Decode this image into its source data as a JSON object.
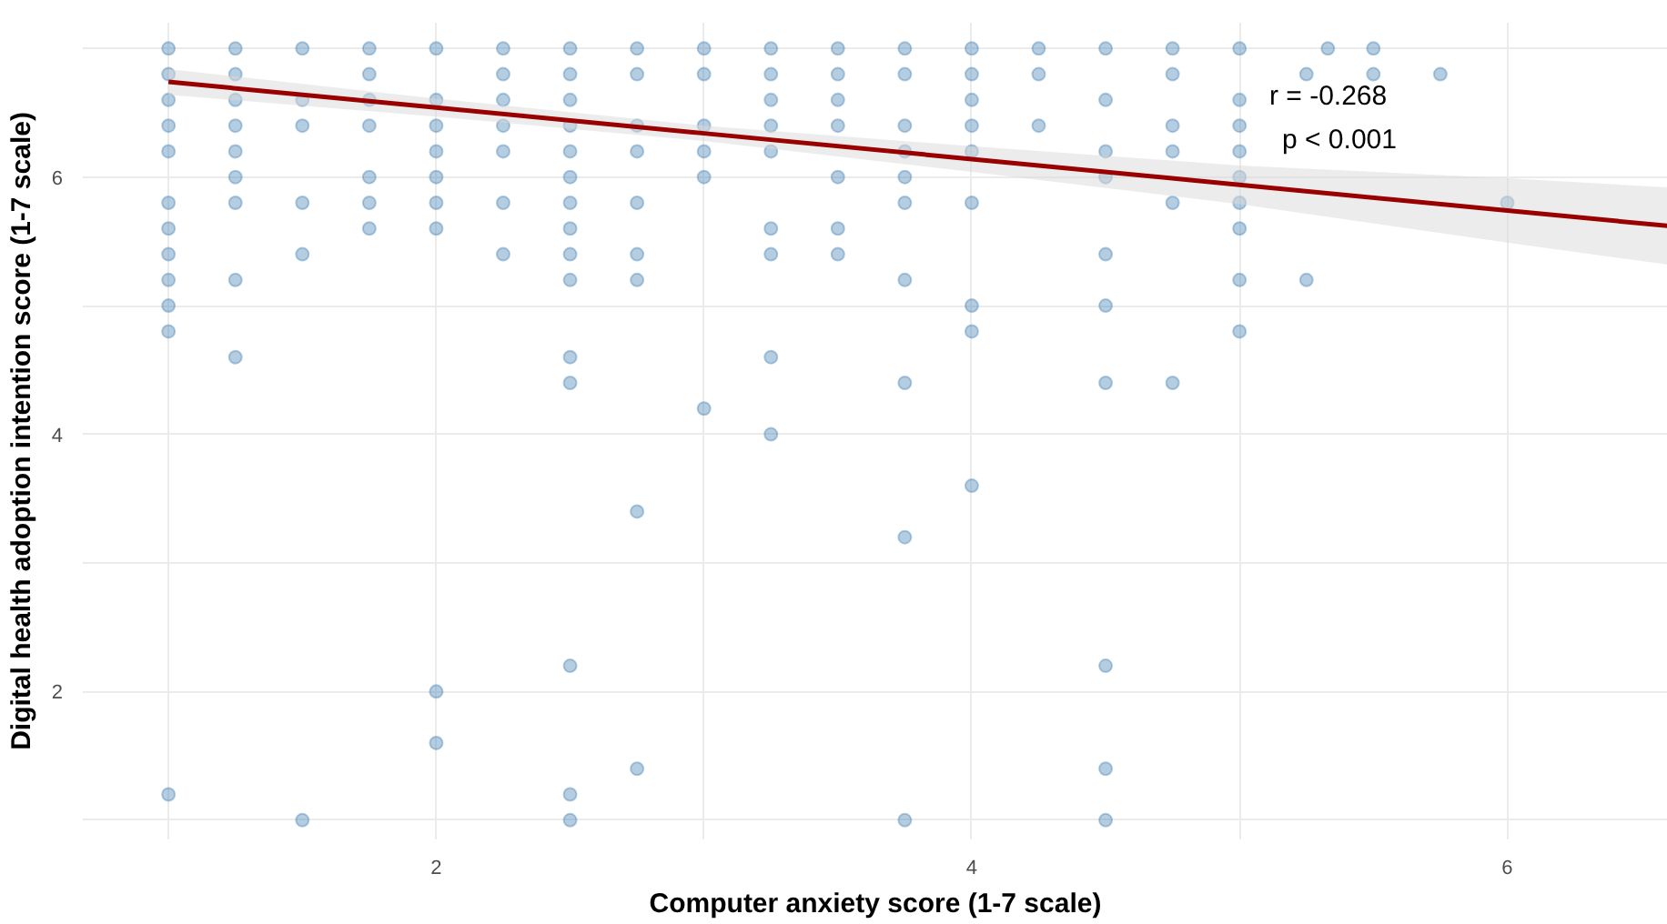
{
  "chart_data": {
    "type": "scatter",
    "xlabel": "Computer anxiety score (1-7 scale)",
    "ylabel": "Digital health adoption intention score (1-7 scale)",
    "annotations": [
      "r = -0.268",
      "p < 0.001"
    ],
    "xlim": [
      0.68,
      6.6
    ],
    "ylim": [
      0.85,
      7.2
    ],
    "xticks": [
      {
        "value": 1,
        "label": null
      },
      2,
      {
        "value": 3,
        "label": null
      },
      4,
      {
        "value": 5,
        "label": null
      },
      6
    ],
    "yticks": [
      {
        "value": 1,
        "label": null
      },
      2,
      {
        "value": 3,
        "label": null
      },
      4,
      {
        "value": 5,
        "label": null
      },
      6,
      {
        "value": 7,
        "label": null
      }
    ],
    "grid": true,
    "series": [
      {
        "marker": "circle",
        "color": "#4682b4",
        "x": [
          1,
          1,
          1,
          1,
          1,
          1,
          1,
          1,
          1,
          1,
          1,
          1,
          1.25,
          1.25,
          1.25,
          1.25,
          1.25,
          1.25,
          1.25,
          1.25,
          1.25,
          1.5,
          1.5,
          1.5,
          1.5,
          1.5,
          1.5,
          1.75,
          1.75,
          1.75,
          1.75,
          1.75,
          1.75,
          1.75,
          2,
          2,
          2,
          2,
          2,
          2,
          2,
          2,
          2,
          2.25,
          2.25,
          2.25,
          2.25,
          2.25,
          2.25,
          2.25,
          2.5,
          2.5,
          2.5,
          2.5,
          2.5,
          2.5,
          2.5,
          2.5,
          2.5,
          2.5,
          2.5,
          2.5,
          2.5,
          2.5,
          2.5,
          2.75,
          2.75,
          2.75,
          2.75,
          2.75,
          2.75,
          2.75,
          2.75,
          2.75,
          3,
          3,
          3,
          3,
          3,
          3,
          3.25,
          3.25,
          3.25,
          3.25,
          3.25,
          3.25,
          3.25,
          3.25,
          3.25,
          3.5,
          3.5,
          3.5,
          3.5,
          3.5,
          3.5,
          3.5,
          3.75,
          3.75,
          3.75,
          3.75,
          3.75,
          3.75,
          3.75,
          3.75,
          3.75,
          3.75,
          4,
          4,
          4,
          4,
          4,
          4,
          4,
          4,
          4,
          4.25,
          4.25,
          4.25,
          4.5,
          4.5,
          4.5,
          4.5,
          4.5,
          4.5,
          4.5,
          4.5,
          4.5,
          4.5,
          4.75,
          4.75,
          4.75,
          4.75,
          4.75,
          4.75,
          5,
          5,
          5,
          5,
          5,
          5,
          5,
          5,
          5,
          5.25,
          5.25,
          5.33,
          5.5,
          5.5,
          5.75,
          6
        ],
        "values": [
          7,
          6.8,
          6.6,
          6.4,
          6.2,
          5.8,
          5.6,
          5.4,
          5.2,
          5.0,
          4.8,
          1.2,
          7,
          6.8,
          6.6,
          6.4,
          6.2,
          6.0,
          5.8,
          5.2,
          4.6,
          7,
          6.6,
          6.4,
          5.8,
          5.4,
          1.0,
          7,
          6.8,
          6.6,
          6.4,
          6.0,
          5.8,
          5.6,
          7,
          6.6,
          6.4,
          6.2,
          6.0,
          5.8,
          5.6,
          2.0,
          1.6,
          7,
          6.8,
          6.6,
          6.4,
          6.2,
          5.8,
          5.4,
          7,
          6.8,
          6.6,
          6.4,
          6.2,
          6.0,
          5.8,
          5.6,
          5.4,
          5.2,
          4.6,
          4.4,
          2.2,
          1.2,
          1.0,
          7,
          6.8,
          6.4,
          6.2,
          5.8,
          5.4,
          5.2,
          3.4,
          1.4,
          7,
          6.8,
          6.4,
          6.2,
          6.0,
          4.2,
          7,
          6.8,
          6.6,
          6.4,
          6.2,
          5.6,
          5.4,
          4.6,
          4.0,
          7,
          6.8,
          6.6,
          6.4,
          6.0,
          5.6,
          5.4,
          7,
          6.8,
          6.4,
          6.2,
          6.0,
          5.8,
          5.2,
          4.4,
          3.2,
          1.0,
          7,
          6.8,
          6.6,
          6.4,
          6.2,
          5.8,
          5.0,
          4.8,
          3.6,
          7,
          6.8,
          6.4,
          7,
          6.6,
          6.2,
          6.0,
          5.4,
          5.0,
          4.4,
          2.2,
          1.4,
          1.0,
          7,
          6.8,
          6.4,
          6.2,
          5.8,
          4.4,
          7,
          6.6,
          6.4,
          6.2,
          6.0,
          5.8,
          5.6,
          5.2,
          4.8,
          6.8,
          5.2,
          7,
          7,
          6.8,
          6.8,
          5.8
        ]
      },
      {
        "type": "line",
        "color": "#990000",
        "line_style": "solid",
        "x": [
          1,
          2,
          3,
          4,
          5,
          6,
          6.6
        ],
        "values": [
          6.74,
          6.54,
          6.34,
          6.14,
          5.94,
          5.74,
          5.62
        ],
        "lower": [
          6.64,
          6.47,
          6.28,
          6.04,
          5.79,
          5.49,
          5.32
        ],
        "upper": [
          6.84,
          6.61,
          6.4,
          6.24,
          6.09,
          5.99,
          5.92
        ]
      }
    ]
  }
}
